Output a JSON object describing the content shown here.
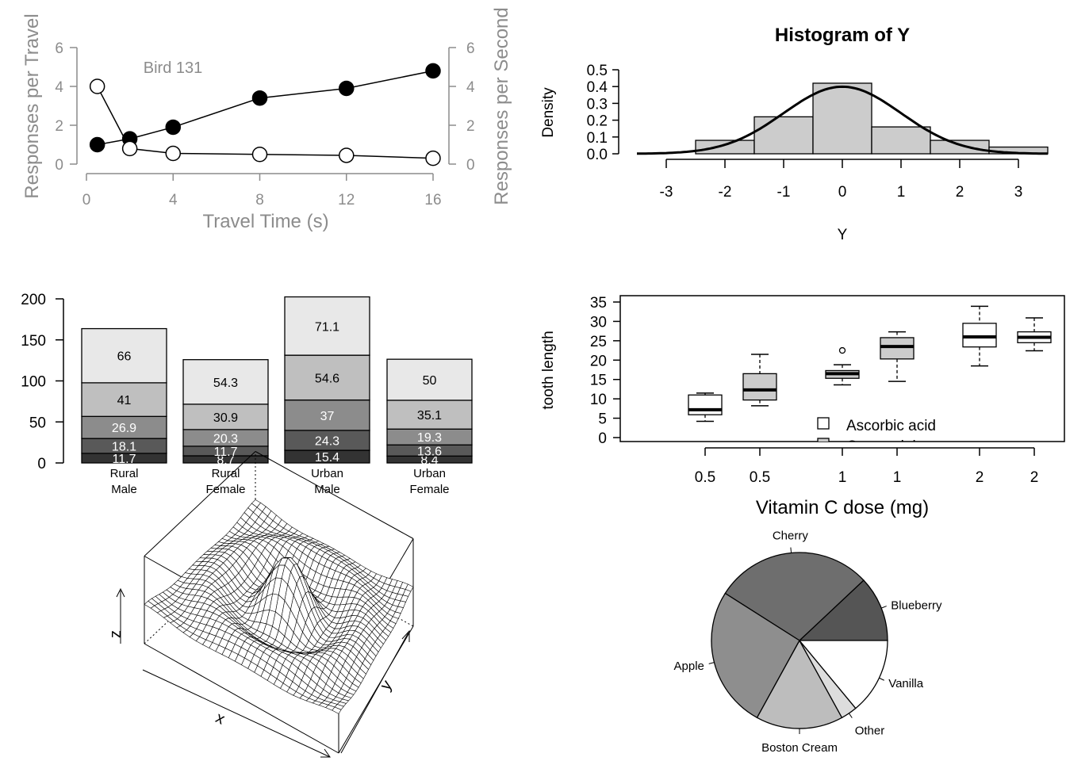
{
  "chart_data": [
    {
      "type": "line",
      "annotation": "Bird 131",
      "xlabel": "Travel Time (s)",
      "ylabel_left": "Responses per Travel",
      "ylabel_right": "Responses per Second",
      "xlim": [
        0,
        16
      ],
      "ylim": [
        0,
        6
      ],
      "x_ticks": [
        "0",
        "4",
        "8",
        "12",
        "16"
      ],
      "y_ticks": [
        "0",
        "2",
        "4",
        "6"
      ],
      "series": [
        {
          "marker": "filled",
          "x": [
            0.5,
            2,
            4,
            8,
            12,
            16
          ],
          "y": [
            1.0,
            1.3,
            1.9,
            3.4,
            3.9,
            4.8
          ]
        },
        {
          "marker": "open",
          "x": [
            0.5,
            2,
            4,
            8,
            12,
            16
          ],
          "y": [
            4.0,
            0.8,
            0.55,
            0.5,
            0.45,
            0.3
          ]
        }
      ],
      "colors": {
        "axis": "#8c8c8c",
        "line": "#000000"
      }
    },
    {
      "type": "histogram",
      "title": "Histogram of Y",
      "xlabel": "Y",
      "ylabel": "Density",
      "x_ticks": [
        "-3",
        "-2",
        "-1",
        "0",
        "1",
        "2",
        "3"
      ],
      "y_ticks": [
        "0.0",
        "0.1",
        "0.2",
        "0.3",
        "0.4",
        "0.5"
      ],
      "bin_edges": [
        -2.5,
        -1.5,
        -0.5,
        0.5,
        1.5,
        2.5,
        3.5
      ],
      "density": [
        0.08,
        0.22,
        0.42,
        0.16,
        0.08,
        0.04
      ],
      "curve": "normal density",
      "colors": {
        "bar": "#cccccc"
      }
    },
    {
      "type": "bar",
      "stacked": true,
      "categories": [
        "Rural\nMale",
        "Rural\nFemale",
        "Urban\nMale",
        "Urban\nFemale"
      ],
      "y_ticks": [
        "0",
        "50",
        "100",
        "150",
        "200"
      ],
      "ylim": [
        0,
        200
      ],
      "segments": [
        [
          11.7,
          18.1,
          26.9,
          41,
          66
        ],
        [
          8.7,
          11.7,
          20.3,
          30.9,
          54.3
        ],
        [
          15.4,
          24.3,
          37,
          54.6,
          71.1
        ],
        [
          8.4,
          13.6,
          19.3,
          35.1,
          50
        ]
      ],
      "colors": [
        "#333333",
        "#595959",
        "#8c8c8c",
        "#bfbfbf",
        "#e8e8e8"
      ],
      "label_colors": [
        "#ffffff",
        "#ffffff",
        "#ffffff",
        "#000000",
        "#000000"
      ]
    },
    {
      "type": "box",
      "xlabel": "Vitamin C dose (mg)",
      "ylabel": "tooth length",
      "y_ticks": [
        "0",
        "5",
        "10",
        "15",
        "20",
        "25",
        "30",
        "35"
      ],
      "ylim": [
        0,
        35
      ],
      "categories": [
        "0.5",
        "0.5",
        "1",
        "1",
        "2",
        "2"
      ],
      "legend": [
        "Ascorbic acid",
        "Orange juice"
      ],
      "boxes": [
        {
          "min": 4.2,
          "q1": 5.9,
          "med": 7.2,
          "q3": 11.0,
          "max": 11.5,
          "fill": "white"
        },
        {
          "min": 8.2,
          "q1": 9.7,
          "med": 12.3,
          "q3": 16.5,
          "max": 21.5,
          "fill": "gray"
        },
        {
          "min": 13.6,
          "q1": 15.3,
          "med": 16.5,
          "q3": 17.3,
          "max": 18.8,
          "out": [
            22.5
          ],
          "fill": "gray"
        },
        {
          "min": 14.5,
          "q1": 20.3,
          "med": 23.5,
          "q3": 25.8,
          "max": 27.3,
          "fill": "gray"
        },
        {
          "min": 18.5,
          "q1": 23.4,
          "med": 26.0,
          "q3": 29.5,
          "max": 33.9,
          "fill": "white"
        },
        {
          "min": 22.4,
          "q1": 24.5,
          "med": 25.9,
          "q3": 27.3,
          "max": 30.9,
          "fill": "white"
        }
      ],
      "colors": {
        "gray": "#cccccc",
        "white": "#ffffff"
      }
    },
    {
      "type": "surface",
      "xlabel": "x",
      "ylabel": "y",
      "zlabel": "z"
    },
    {
      "type": "pie",
      "labels": [
        "Blueberry",
        "Cherry",
        "Apple",
        "Boston Cream",
        "Other",
        "Vanilla"
      ],
      "values": [
        12,
        29,
        26,
        16,
        3,
        14
      ],
      "colors": [
        "#555555",
        "#6e6e6e",
        "#8e8e8e",
        "#bdbdbd",
        "#dddddd",
        "#ffffff"
      ]
    }
  ]
}
